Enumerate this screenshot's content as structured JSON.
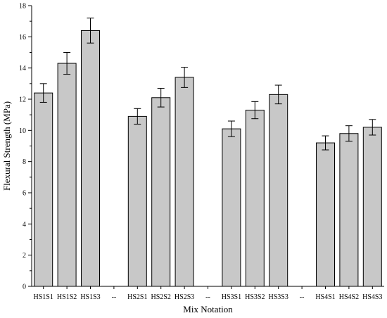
{
  "chart_data": {
    "type": "bar",
    "xlabel": "Mix Notation",
    "ylabel": "Flexural Strength (MPa)",
    "ylim": [
      0,
      18
    ],
    "yticks": [
      0,
      2,
      4,
      6,
      8,
      10,
      12,
      14,
      16,
      18
    ],
    "grid": false,
    "legend": "none",
    "bar_color": "#c8c8c8",
    "categories": [
      "HS1S1",
      "HS1S2",
      "HS1S3",
      "--",
      "HS2S1",
      "HS2S2",
      "HS2S3",
      "--",
      "HS3S1",
      "HS3S2",
      "HS3S3",
      "--",
      "HS4S1",
      "HS4S2",
      "HS4S3"
    ],
    "values": [
      12.4,
      14.3,
      16.4,
      null,
      10.9,
      12.1,
      13.4,
      null,
      10.1,
      11.3,
      12.3,
      null,
      9.2,
      9.8,
      10.2
    ],
    "errors": [
      0.6,
      0.7,
      0.8,
      null,
      0.5,
      0.6,
      0.65,
      null,
      0.5,
      0.55,
      0.6,
      null,
      0.45,
      0.5,
      0.5
    ]
  }
}
